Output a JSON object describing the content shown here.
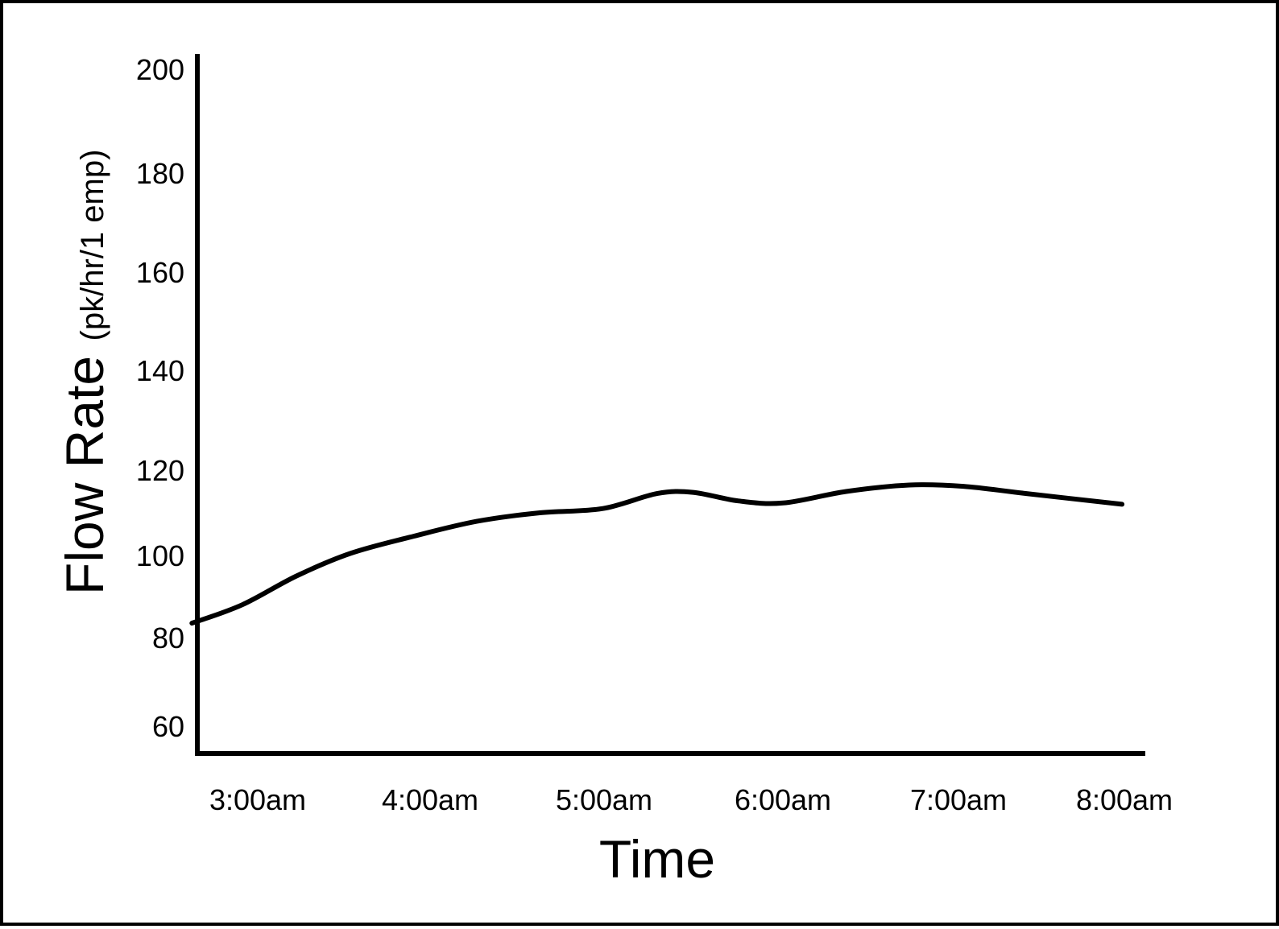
{
  "chart_data": {
    "type": "line",
    "title": "",
    "xlabel": "Time",
    "ylabel_main": "Flow Rate",
    "ylabel_unit": "(pk/hr/1 emp)",
    "x_ticks": [
      "3:00am",
      "4:00am",
      "5:00am",
      "6:00am",
      "7:00am",
      "8:00am"
    ],
    "y_ticks": [
      60,
      80,
      100,
      120,
      140,
      160,
      180,
      200
    ],
    "ylim": [
      55,
      203
    ],
    "grid": false,
    "legend": "none",
    "line_color": "#000000",
    "series": [
      {
        "points": [
          {
            "x": 2.97,
            "y": 83.5
          },
          {
            "x": 3.25,
            "y": 88.0
          },
          {
            "x": 3.55,
            "y": 95.0
          },
          {
            "x": 3.85,
            "y": 100.5
          },
          {
            "x": 4.2,
            "y": 104.5
          },
          {
            "x": 4.55,
            "y": 108.0
          },
          {
            "x": 4.9,
            "y": 110.0
          },
          {
            "x": 5.25,
            "y": 111.0
          },
          {
            "x": 5.55,
            "y": 114.5
          },
          {
            "x": 5.75,
            "y": 114.8
          },
          {
            "x": 6.0,
            "y": 112.8
          },
          {
            "x": 6.25,
            "y": 112.3
          },
          {
            "x": 6.6,
            "y": 115.0
          },
          {
            "x": 6.95,
            "y": 116.5
          },
          {
            "x": 7.25,
            "y": 116.2
          },
          {
            "x": 7.6,
            "y": 114.5
          },
          {
            "x": 8.13,
            "y": 112.0
          }
        ]
      }
    ]
  }
}
